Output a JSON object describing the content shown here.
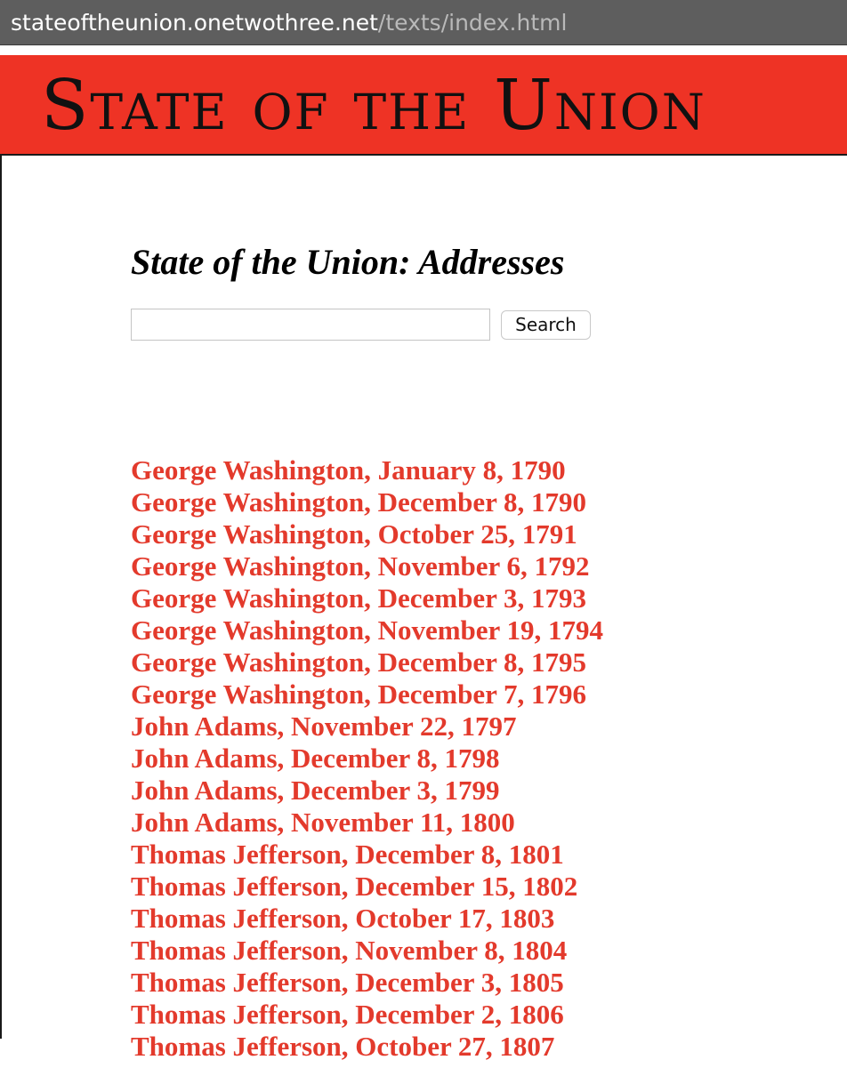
{
  "browser": {
    "url_host": "stateoftheunion.onetwothree.net",
    "url_path": "/texts/index.html"
  },
  "banner": {
    "title": "State of the Union"
  },
  "page": {
    "title": "State of the Union: Addresses"
  },
  "search": {
    "value": "",
    "button_label": "Search"
  },
  "addresses": [
    "George Washington, January 8, 1790",
    "George Washington, December 8, 1790",
    "George Washington, October 25, 1791",
    "George Washington, November 6, 1792",
    "George Washington, December 3, 1793",
    "George Washington, November 19, 1794",
    "George Washington, December 8, 1795",
    "George Washington, December 7, 1796",
    "John Adams, November 22, 1797",
    "John Adams, December 8, 1798",
    "John Adams, December 3, 1799",
    "John Adams, November 11, 1800",
    "Thomas Jefferson, December 8, 1801",
    "Thomas Jefferson, December 15, 1802",
    "Thomas Jefferson, October 17, 1803",
    "Thomas Jefferson, November 8, 1804",
    "Thomas Jefferson, December 3, 1805",
    "Thomas Jefferson, December 2, 1806",
    "Thomas Jefferson, October 27, 1807"
  ],
  "colors": {
    "banner_red": "#ee3325",
    "link_red": "#e33a2c",
    "url_bar_gray": "#5e5e5e"
  }
}
